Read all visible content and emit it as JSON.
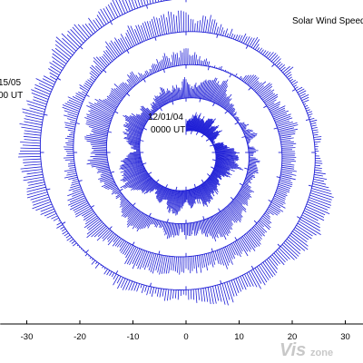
{
  "chart_data": {
    "type": "area",
    "title": "Solar Wind Speed",
    "xlabel": "",
    "ylabel": "",
    "xlim": [
      -35,
      35
    ],
    "x_ticks": [
      -30,
      -20,
      -10,
      0,
      10,
      20,
      30
    ],
    "x_tick_labels": [
      "-30",
      "-20",
      "-10",
      "0",
      "10",
      "20",
      "30"
    ],
    "grid": false,
    "spiral": {
      "start_label": "12/01/04",
      "start_time": "0000 UT",
      "end_label": "15/05",
      "end_time": "00 UT",
      "turns": 4,
      "base_radius_start": 4,
      "base_radius_end": 29
    },
    "color": "#1f1fd6",
    "watermark": {
      "prefix": "Vis",
      "suffix": "zone"
    }
  }
}
